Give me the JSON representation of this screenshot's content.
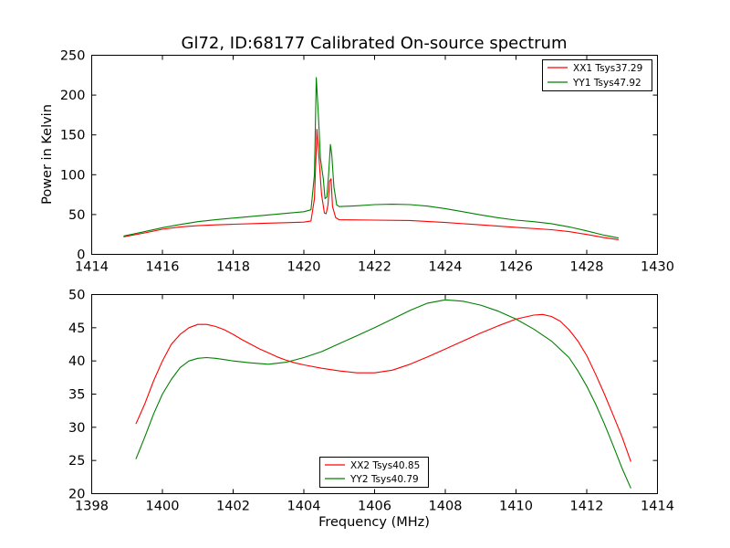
{
  "chart_data": [
    {
      "type": "line",
      "title": "Gl72, ID:68177 Calibrated On-source spectrum",
      "xlabel": "",
      "ylabel": "Power in Kelvin",
      "xlim": [
        1414,
        1430
      ],
      "ylim": [
        0,
        250
      ],
      "xticks": [
        "1414",
        "1416",
        "1418",
        "1420",
        "1422",
        "1424",
        "1426",
        "1428",
        "1430"
      ],
      "yticks": [
        "0",
        "50",
        "100",
        "150",
        "200",
        "250"
      ],
      "grid": false,
      "legend_position": "top-right",
      "series": [
        {
          "name": "XX1 Tsys37.29",
          "color": "#ff0000",
          "points": [
            [
              1414.9,
              22
            ],
            [
              1415.5,
              27
            ],
            [
              1416,
              31.5
            ],
            [
              1416.5,
              34.5
            ],
            [
              1417,
              36
            ],
            [
              1417.5,
              37
            ],
            [
              1418,
              37.8
            ],
            [
              1418.5,
              38.5
            ],
            [
              1419,
              39.2
            ],
            [
              1419.5,
              39.8
            ],
            [
              1420,
              40.5
            ],
            [
              1420.2,
              42
            ],
            [
              1420.3,
              70
            ],
            [
              1420.37,
              157
            ],
            [
              1420.43,
              120
            ],
            [
              1420.5,
              75
            ],
            [
              1420.58,
              52
            ],
            [
              1420.63,
              51
            ],
            [
              1420.68,
              62
            ],
            [
              1420.73,
              92
            ],
            [
              1420.77,
              95
            ],
            [
              1420.81,
              60
            ],
            [
              1420.9,
              46
            ],
            [
              1421,
              43.5
            ],
            [
              1422,
              43
            ],
            [
              1423,
              42.5
            ],
            [
              1424,
              40
            ],
            [
              1425,
              37
            ],
            [
              1426,
              34
            ],
            [
              1427,
              31
            ],
            [
              1427.5,
              28.5
            ],
            [
              1428,
              25
            ],
            [
              1428.5,
              21
            ],
            [
              1428.9,
              18.5
            ]
          ]
        },
        {
          "name": "YY1 Tsys47.92",
          "color": "#008000",
          "points": [
            [
              1414.9,
              23
            ],
            [
              1415.5,
              28.5
            ],
            [
              1416,
              33.5
            ],
            [
              1416.5,
              37.5
            ],
            [
              1417,
              41
            ],
            [
              1417.5,
              43.5
            ],
            [
              1418,
              45.5
            ],
            [
              1418.5,
              47.5
            ],
            [
              1419,
              49.5
            ],
            [
              1419.5,
              51.5
            ],
            [
              1420,
              53.5
            ],
            [
              1420.2,
              56
            ],
            [
              1420.3,
              100
            ],
            [
              1420.35,
              222
            ],
            [
              1420.41,
              175
            ],
            [
              1420.47,
              120
            ],
            [
              1420.55,
              95
            ],
            [
              1420.6,
              70
            ],
            [
              1420.65,
              72
            ],
            [
              1420.7,
              100
            ],
            [
              1420.75,
              138
            ],
            [
              1420.79,
              125
            ],
            [
              1420.85,
              85
            ],
            [
              1420.93,
              62
            ],
            [
              1421,
              60
            ],
            [
              1421.5,
              61
            ],
            [
              1422,
              62.5
            ],
            [
              1422.5,
              63
            ],
            [
              1423,
              62.5
            ],
            [
              1423.5,
              60.5
            ],
            [
              1424,
              57.5
            ],
            [
              1424.5,
              53.5
            ],
            [
              1425,
              49.5
            ],
            [
              1425.5,
              46
            ],
            [
              1426,
              43
            ],
            [
              1426.5,
              41
            ],
            [
              1427,
              38.5
            ],
            [
              1427.5,
              34.5
            ],
            [
              1428,
              29.5
            ],
            [
              1428.5,
              24
            ],
            [
              1428.9,
              20.5
            ]
          ]
        }
      ]
    },
    {
      "type": "line",
      "title": "",
      "xlabel": "Frequency (MHz)",
      "ylabel": "",
      "xlim": [
        1398,
        1414
      ],
      "ylim": [
        20,
        50
      ],
      "xticks": [
        "1398",
        "1400",
        "1402",
        "1404",
        "1406",
        "1408",
        "1410",
        "1412",
        "1414"
      ],
      "yticks": [
        "20",
        "25",
        "30",
        "35",
        "40",
        "45",
        "50"
      ],
      "grid": false,
      "legend_position": "bottom-center",
      "series": [
        {
          "name": "XX2 Tsys40.85",
          "color": "#ff0000",
          "points": [
            [
              1399.25,
              30.5
            ],
            [
              1399.5,
              33.5
            ],
            [
              1399.75,
              37
            ],
            [
              1400,
              40
            ],
            [
              1400.25,
              42.5
            ],
            [
              1400.5,
              44
            ],
            [
              1400.75,
              45
            ],
            [
              1401,
              45.5
            ],
            [
              1401.25,
              45.5
            ],
            [
              1401.5,
              45.2
            ],
            [
              1401.75,
              44.7
            ],
            [
              1402,
              44
            ],
            [
              1402.25,
              43.2
            ],
            [
              1402.5,
              42.5
            ],
            [
              1402.75,
              41.8
            ],
            [
              1403,
              41.2
            ],
            [
              1403.25,
              40.6
            ],
            [
              1403.5,
              40.1
            ],
            [
              1403.75,
              39.7
            ],
            [
              1404,
              39.4
            ],
            [
              1404.5,
              38.9
            ],
            [
              1405,
              38.5
            ],
            [
              1405.5,
              38.2
            ],
            [
              1406,
              38.2
            ],
            [
              1406.5,
              38.6
            ],
            [
              1407,
              39.5
            ],
            [
              1407.5,
              40.6
            ],
            [
              1408,
              41.8
            ],
            [
              1408.5,
              43
            ],
            [
              1409,
              44.2
            ],
            [
              1409.5,
              45.3
            ],
            [
              1410,
              46.3
            ],
            [
              1410.5,
              46.9
            ],
            [
              1410.75,
              47
            ],
            [
              1411,
              46.7
            ],
            [
              1411.25,
              46
            ],
            [
              1411.5,
              44.7
            ],
            [
              1411.75,
              43
            ],
            [
              1412,
              40.8
            ],
            [
              1412.25,
              38
            ],
            [
              1412.5,
              35
            ],
            [
              1412.75,
              31.8
            ],
            [
              1413,
              28.5
            ],
            [
              1413.25,
              24.8
            ]
          ]
        },
        {
          "name": "YY2 Tsys40.79",
          "color": "#008000",
          "points": [
            [
              1399.25,
              25.2
            ],
            [
              1399.5,
              28.5
            ],
            [
              1399.75,
              32
            ],
            [
              1400,
              35
            ],
            [
              1400.25,
              37.2
            ],
            [
              1400.5,
              39
            ],
            [
              1400.75,
              40
            ],
            [
              1401,
              40.4
            ],
            [
              1401.25,
              40.5
            ],
            [
              1401.5,
              40.4
            ],
            [
              1401.75,
              40.2
            ],
            [
              1402,
              40
            ],
            [
              1402.5,
              39.7
            ],
            [
              1403,
              39.5
            ],
            [
              1403.5,
              39.8
            ],
            [
              1404,
              40.5
            ],
            [
              1404.5,
              41.4
            ],
            [
              1405,
              42.6
            ],
            [
              1405.5,
              43.8
            ],
            [
              1406,
              45
            ],
            [
              1406.5,
              46.3
            ],
            [
              1407,
              47.6
            ],
            [
              1407.5,
              48.7
            ],
            [
              1408,
              49.2
            ],
            [
              1408.5,
              49
            ],
            [
              1409,
              48.4
            ],
            [
              1409.5,
              47.5
            ],
            [
              1410,
              46.3
            ],
            [
              1410.5,
              44.8
            ],
            [
              1411,
              43
            ],
            [
              1411.5,
              40.5
            ],
            [
              1411.75,
              38.5
            ],
            [
              1412,
              36.2
            ],
            [
              1412.25,
              33.5
            ],
            [
              1412.5,
              30.5
            ],
            [
              1412.75,
              27.2
            ],
            [
              1413,
              23.8
            ],
            [
              1413.25,
              20.8
            ]
          ]
        }
      ]
    }
  ]
}
